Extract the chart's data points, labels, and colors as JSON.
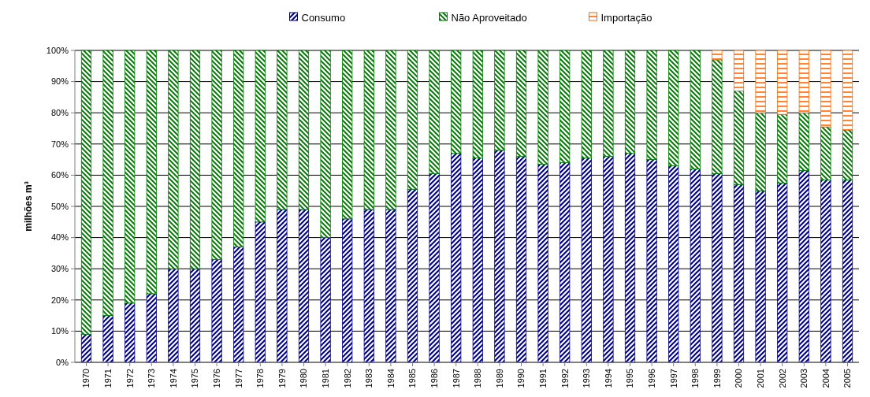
{
  "chart_data": {
    "type": "bar",
    "stacked": true,
    "ylabel": "milhões m³",
    "legend": "top",
    "grid": "y",
    "categories": [
      "1970",
      "1971",
      "1972",
      "1973",
      "1974",
      "1975",
      "1976",
      "1977",
      "1978",
      "1979",
      "1980",
      "1981",
      "1982",
      "1983",
      "1984",
      "1985",
      "1986",
      "1987",
      "1988",
      "1989",
      "1990",
      "1991",
      "1992",
      "1993",
      "1994",
      "1995",
      "1996",
      "1997",
      "1998",
      "1999",
      "2000",
      "2001",
      "2002",
      "2003",
      "2004",
      "2005"
    ],
    "ylim": [
      0,
      100
    ],
    "yticks": [
      {
        "value": 0,
        "label": "0%"
      },
      {
        "value": 10,
        "label": "10%"
      },
      {
        "value": 20,
        "label": "20%"
      },
      {
        "value": 30,
        "label": "30%"
      },
      {
        "value": 40,
        "label": "40%"
      },
      {
        "value": 50,
        "label": "50%"
      },
      {
        "value": 60,
        "label": "60%"
      },
      {
        "value": 70,
        "label": "70%"
      },
      {
        "value": 80,
        "label": "80%"
      },
      {
        "value": 90,
        "label": "90%"
      },
      {
        "value": 100,
        "label": "100%"
      }
    ],
    "series": [
      {
        "name": "Consumo",
        "color": "#000080",
        "values": [
          9,
          15,
          19,
          22,
          30,
          30,
          33,
          37,
          45,
          49,
          49,
          40,
          46,
          49,
          49,
          55.5,
          60.5,
          67,
          65.5,
          68,
          66,
          63.5,
          64,
          65.5,
          66,
          67,
          65,
          63,
          62,
          60.5,
          57,
          55,
          57.5,
          61.5,
          58.5,
          58.5
        ]
      },
      {
        "name": "Não Aproveitado",
        "color": "#008000",
        "values": [
          91,
          85,
          81,
          78,
          70,
          70,
          67,
          63,
          55,
          51,
          51,
          60,
          54,
          51,
          51,
          44.5,
          39.5,
          33,
          34.5,
          32,
          34,
          36.5,
          36,
          34.5,
          34,
          33,
          35,
          37,
          38,
          36.5,
          30,
          25,
          22,
          18.5,
          17,
          16
        ]
      },
      {
        "name": "Importação",
        "color": "#ff6600",
        "values": [
          null,
          null,
          null,
          null,
          null,
          null,
          null,
          null,
          null,
          null,
          null,
          null,
          null,
          null,
          null,
          null,
          null,
          null,
          null,
          null,
          null,
          null,
          null,
          null,
          null,
          null,
          null,
          null,
          null,
          3,
          13,
          20,
          20.5,
          20,
          24.5,
          25.5
        ]
      }
    ]
  }
}
